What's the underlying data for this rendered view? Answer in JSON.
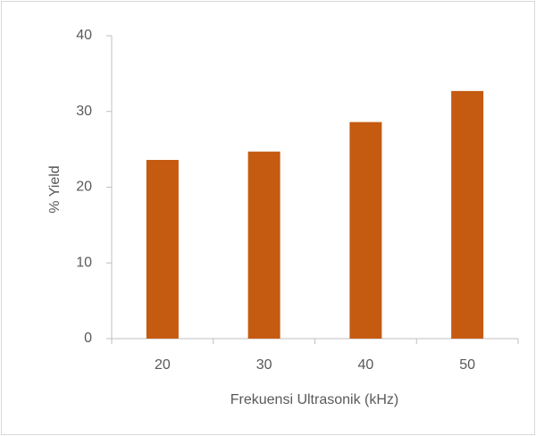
{
  "chart_data": {
    "type": "bar",
    "x_label": "Frekuensi Ultrasonik (kHz)",
    "y_label": "% Yield",
    "categories": [
      "20",
      "30",
      "40",
      "50"
    ],
    "values": [
      23.6,
      24.7,
      28.6,
      32.7
    ],
    "color": "#c55a11",
    "ylim": [
      0,
      40
    ],
    "yticks": [
      0,
      10,
      20,
      30,
      40
    ],
    "grid": false
  }
}
